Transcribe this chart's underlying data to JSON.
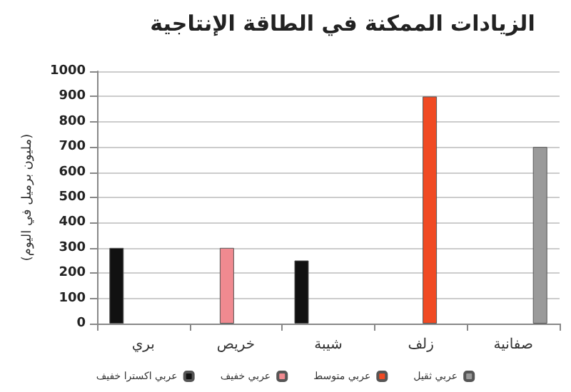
{
  "chart_data": {
    "type": "bar",
    "title": "الزيادات الممكنة في الطاقة الإنتاجية",
    "ylabel": "(مليون برميل في اليوم)",
    "categories": [
      "بري",
      "خريص",
      "شيبة",
      "زلف",
      "صفانية"
    ],
    "series": [
      {
        "name": "عربي اكسترا خفيف",
        "color": "#111111",
        "values": [
          300,
          null,
          250,
          null,
          null
        ]
      },
      {
        "name": "عربي خفيف",
        "color": "#f08a90",
        "values": [
          null,
          300,
          null,
          null,
          null
        ]
      },
      {
        "name": "عربي متوسط",
        "color": "#f04a23",
        "values": [
          null,
          null,
          null,
          900,
          null
        ]
      },
      {
        "name": "عربي ثقيل",
        "color": "#9a9a9a",
        "values": [
          null,
          null,
          null,
          null,
          700
        ]
      }
    ],
    "ylim": [
      0,
      1000
    ],
    "yticks": [
      0,
      100,
      200,
      300,
      400,
      500,
      600,
      700,
      800,
      900,
      1000
    ],
    "grid": "y",
    "legend": "bottom"
  }
}
